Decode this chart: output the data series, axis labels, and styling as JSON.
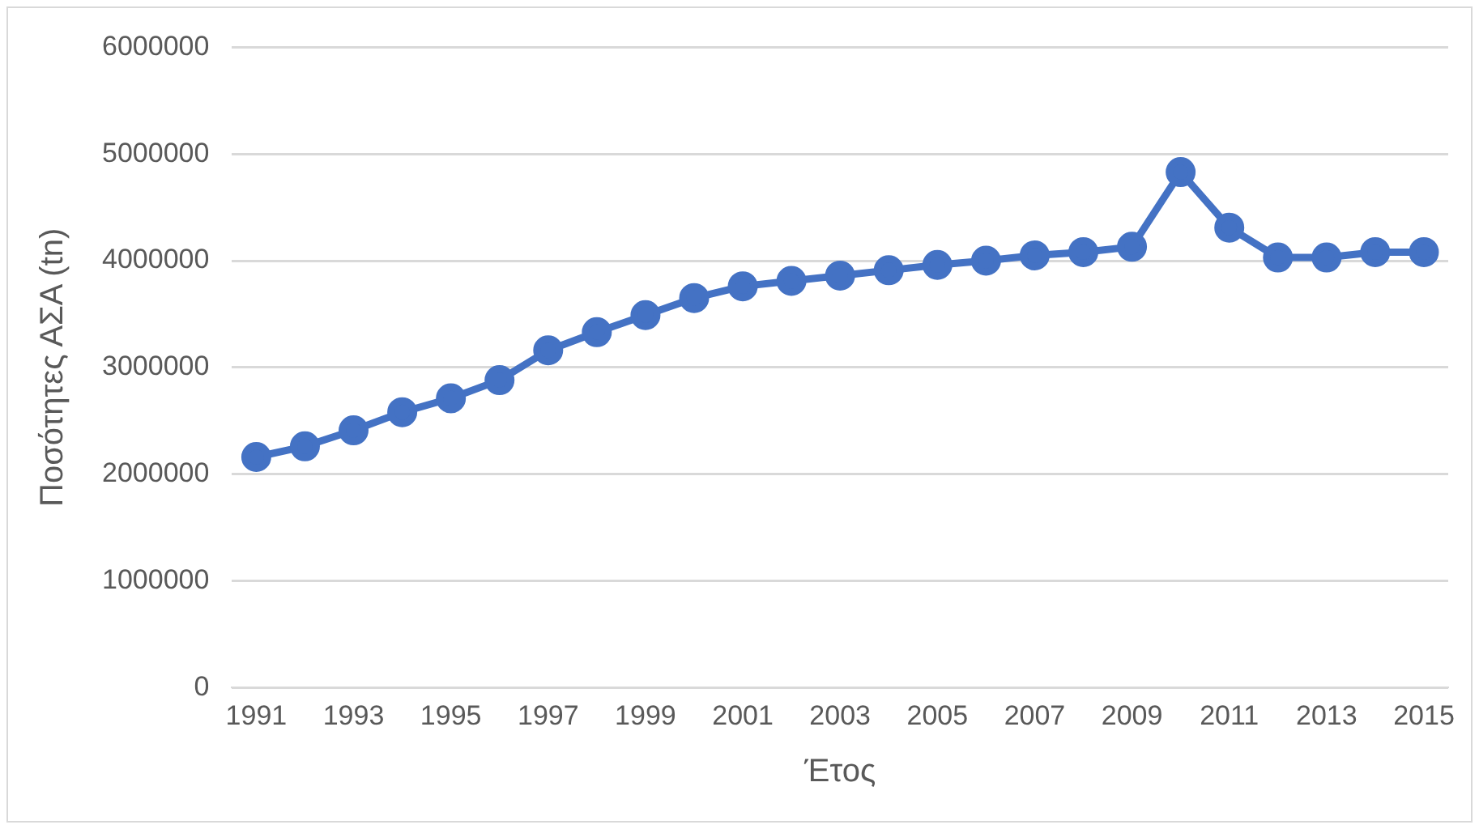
{
  "chart_data": {
    "type": "line",
    "xlabel": "Έτος",
    "ylabel": "Ποσότητες ΑΣΑ (tn)",
    "categories": [
      "1991",
      null,
      "1993",
      null,
      "1995",
      null,
      "1997",
      null,
      "1999",
      null,
      "2001",
      null,
      "2003",
      null,
      "2005",
      null,
      "2007",
      null,
      "2009",
      null,
      "2011",
      null,
      "2013",
      null,
      "2015"
    ],
    "series": [
      {
        "color": "#4472c4",
        "values": [
          2160000,
          2260000,
          2410000,
          2580000,
          2710000,
          2880000,
          3160000,
          3330000,
          3490000,
          3650000,
          3760000,
          3810000,
          3860000,
          3910000,
          3960000,
          4000000,
          4050000,
          4080000,
          4130000,
          4830000,
          4310000,
          4030000,
          4030000,
          4080000,
          4080000
        ]
      }
    ],
    "ylim": [
      0,
      6000000
    ],
    "yticks": [
      0,
      1000000,
      2000000,
      3000000,
      4000000,
      5000000,
      6000000
    ],
    "grid": "y",
    "legend": false,
    "marker": "circle",
    "line_style": "solid"
  }
}
